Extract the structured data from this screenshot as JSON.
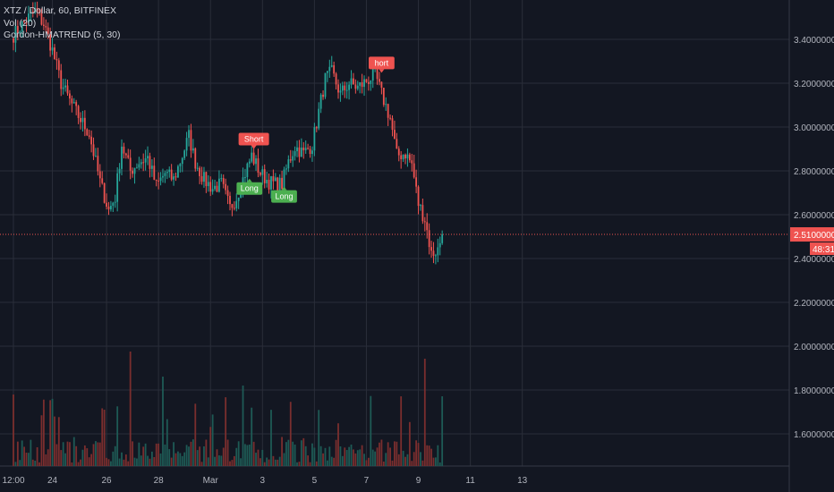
{
  "legend": {
    "symbol": "XTZ / Dollar, 60, BITFINEX",
    "vol": "Vol (20)",
    "indicator": "Gordon-HMATREND (5, 30)"
  },
  "colors": {
    "background": "#131722",
    "grid": "#2a2e39",
    "up": "#26a69a",
    "down": "#ef5350",
    "up_vol": "#1e5a55",
    "down_vol": "#7a2e2e",
    "long": "#4caf50",
    "short": "#ef5350",
    "price_line": "#ef5350"
  },
  "chart_data": {
    "type": "candlestick",
    "y_ticks": [
      "3.40000000",
      "3.20000000",
      "3.00000000",
      "2.80000000",
      "2.60000000",
      "2.40000000",
      "2.20000000",
      "2.00000000",
      "1.80000000",
      "1.60000000"
    ],
    "y_tick_values": [
      3.4,
      3.2,
      3.0,
      2.8,
      2.6,
      2.4,
      2.2,
      2.0,
      1.8,
      1.6
    ],
    "x_ticks": [
      "12:00",
      "24",
      "26",
      "28",
      "Mar",
      "3",
      "5",
      "7",
      "9",
      "11",
      "13"
    ],
    "x_tick_index": [
      0,
      18,
      43,
      67,
      91,
      115,
      139,
      163,
      187,
      211,
      235
    ],
    "last_price": "2.51000000",
    "countdown": "48:31",
    "anchors": [
      [
        0,
        3.42
      ],
      [
        6,
        3.49
      ],
      [
        10,
        3.53
      ],
      [
        14,
        3.47
      ],
      [
        18,
        3.35
      ],
      [
        22,
        3.2
      ],
      [
        26,
        3.12
      ],
      [
        30,
        3.05
      ],
      [
        35,
        2.97
      ],
      [
        40,
        2.75
      ],
      [
        44,
        2.62
      ],
      [
        47,
        2.68
      ],
      [
        50,
        2.92
      ],
      [
        54,
        2.8
      ],
      [
        58,
        2.84
      ],
      [
        62,
        2.86
      ],
      [
        66,
        2.73
      ],
      [
        70,
        2.79
      ],
      [
        74,
        2.76
      ],
      [
        78,
        2.87
      ],
      [
        81,
        2.96
      ],
      [
        84,
        2.84
      ],
      [
        88,
        2.76
      ],
      [
        92,
        2.72
      ],
      [
        96,
        2.74
      ],
      [
        100,
        2.63
      ],
      [
        103,
        2.68
      ],
      [
        107,
        2.79
      ],
      [
        110,
        2.87
      ],
      [
        114,
        2.79
      ],
      [
        118,
        2.75
      ],
      [
        121,
        2.74
      ],
      [
        124,
        2.74
      ],
      [
        127,
        2.84
      ],
      [
        130,
        2.91
      ],
      [
        134,
        2.88
      ],
      [
        138,
        2.92
      ],
      [
        141,
        3.07
      ],
      [
        144,
        3.22
      ],
      [
        147,
        3.25
      ],
      [
        151,
        3.15
      ],
      [
        155,
        3.2
      ],
      [
        159,
        3.18
      ],
      [
        163,
        3.21
      ],
      [
        167,
        3.24
      ],
      [
        170,
        3.15
      ],
      [
        174,
        3.04
      ],
      [
        177,
        2.87
      ],
      [
        181,
        2.88
      ],
      [
        184,
        2.83
      ],
      [
        187,
        2.65
      ],
      [
        190,
        2.58
      ],
      [
        193,
        2.42
      ],
      [
        196,
        2.44
      ],
      [
        198,
        2.51
      ]
    ],
    "signals": [
      {
        "label": "Short",
        "index": 111,
        "dir": "short"
      },
      {
        "label": "Long",
        "index": 109,
        "dir": "long"
      },
      {
        "label": "Long",
        "index": 125,
        "dir": "long"
      },
      {
        "label": "hort",
        "index": 170,
        "dir": "short"
      }
    ]
  }
}
